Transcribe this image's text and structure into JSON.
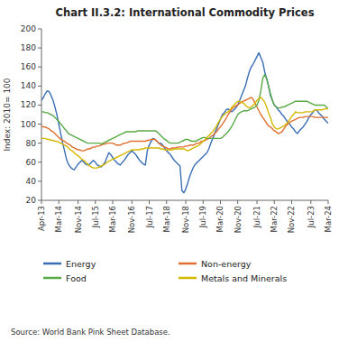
{
  "chart_data": {
    "type": "line",
    "title": "Chart II.3.2: International Commodity Prices",
    "y_label": "Index: 2010= 100",
    "source": "Source: World Bank Pink Sheet Database.",
    "ylim": [
      20,
      200
    ],
    "yticks": [
      20,
      40,
      60,
      80,
      100,
      120,
      140,
      160,
      180,
      200
    ],
    "grid": false,
    "legend": "bottom",
    "categories": [
      "Apr-13",
      null,
      null,
      null,
      null,
      null,
      null,
      null,
      null,
      "Mar-14",
      null,
      null,
      null,
      null,
      null,
      null,
      null,
      null,
      null,
      "Nov-14",
      null,
      null,
      null,
      null,
      null,
      null,
      null,
      null,
      "Jul-15",
      null,
      null,
      null,
      null,
      null,
      null,
      null,
      null,
      "Mar-16",
      null,
      null,
      null,
      null,
      null,
      null,
      null,
      null,
      null,
      "Nov-16",
      null,
      null,
      null,
      null,
      null,
      null,
      null,
      null,
      "Jul-17",
      null,
      null,
      null,
      null,
      null,
      null,
      null,
      null,
      "Mar-18",
      null,
      null,
      null,
      null,
      null,
      null,
      null,
      null,
      null,
      "Nov-18",
      null,
      null,
      null,
      null,
      null,
      null,
      null,
      null,
      "Jul-19",
      null,
      null,
      null,
      null,
      null,
      null,
      null,
      null,
      "Mar-20",
      null,
      null,
      null,
      null,
      null,
      null,
      null,
      null,
      "Nov-20",
      null,
      null,
      null,
      null,
      null,
      null,
      null,
      null,
      null,
      "Jul-21",
      null,
      null,
      null,
      null,
      null,
      null,
      null,
      null,
      "Mar-22",
      null,
      null,
      null,
      null,
      null,
      null,
      null,
      null,
      "Nov-22",
      null,
      null,
      null,
      null,
      null,
      null,
      null,
      null,
      null,
      "Jul-23",
      null,
      null,
      null,
      null,
      null,
      null,
      null,
      null,
      "Mar-24"
    ],
    "series": [
      {
        "name": "Energy",
        "color": "#3a6eb5",
        "values": [
          125,
          128,
          132,
          135,
          134,
          130,
          125,
          118,
          110,
          100,
          90,
          80,
          72,
          63,
          58,
          55,
          53,
          52,
          55,
          58,
          60,
          62,
          60,
          58,
          57,
          58,
          60,
          62,
          60,
          57,
          56,
          55,
          57,
          60,
          65,
          70,
          68,
          65,
          62,
          60,
          58,
          57,
          60,
          62,
          65,
          68,
          70,
          72,
          70,
          68,
          65,
          62,
          60,
          58,
          57,
          72,
          78,
          82,
          85,
          84,
          82,
          80,
          80,
          78,
          75,
          72,
          70,
          68,
          65,
          62,
          60,
          58,
          56,
          30,
          28,
          32,
          38,
          45,
          50,
          55,
          58,
          60,
          62,
          64,
          66,
          68,
          70,
          74,
          80,
          85,
          90,
          95,
          100,
          105,
          110,
          112,
          115,
          116,
          114,
          113,
          115,
          117,
          120,
          125,
          130,
          135,
          140,
          148,
          155,
          160,
          163,
          167,
          171,
          175,
          170,
          165,
          155,
          148,
          140,
          130,
          125,
          120,
          118,
          115,
          113,
          110,
          108,
          105,
          102,
          100,
          97,
          95,
          92,
          90,
          93,
          95,
          97,
          100,
          103,
          107,
          110,
          112,
          115,
          115,
          112,
          110,
          108,
          105,
          103,
          101
        ]
      },
      {
        "name": "Non-energy",
        "color": "#e07030",
        "values": [
          98,
          97,
          97,
          96,
          95,
          93,
          92,
          90,
          88,
          86,
          84,
          83,
          82,
          80,
          79,
          78,
          76,
          75,
          74,
          73,
          73,
          72,
          72,
          73,
          74,
          74,
          75,
          76,
          76,
          77,
          77,
          78,
          79,
          79,
          80,
          80,
          80,
          80,
          79,
          78,
          78,
          78,
          79,
          80,
          80,
          81,
          82,
          82,
          82,
          82,
          82,
          82,
          82,
          82,
          82,
          83,
          83,
          84,
          84,
          84,
          82,
          80,
          78,
          77,
          76,
          75,
          74,
          74,
          75,
          75,
          75,
          76,
          76,
          76,
          76,
          77,
          77,
          78,
          78,
          78,
          79,
          80,
          80,
          82,
          82,
          83,
          84,
          85,
          87,
          88,
          90,
          92,
          95,
          97,
          100,
          103,
          106,
          110,
          113,
          116,
          118,
          119,
          120,
          122,
          123,
          124,
          125,
          126,
          127,
          128,
          126,
          122,
          118,
          114,
          110,
          107,
          104,
          101,
          98,
          97,
          95,
          93,
          92,
          90,
          91,
          92,
          95,
          98,
          100,
          102,
          103,
          104,
          105,
          106,
          107,
          107,
          107,
          108,
          108,
          108,
          108,
          108,
          107,
          107,
          107,
          107,
          107,
          107,
          107,
          107
        ]
      },
      {
        "name": "Food",
        "color": "#5aaa46",
        "values": [
          113,
          113,
          112,
          112,
          111,
          110,
          109,
          107,
          105,
          103,
          100,
          98,
          95,
          93,
          90,
          89,
          88,
          87,
          86,
          85,
          84,
          83,
          82,
          81,
          80,
          80,
          80,
          80,
          80,
          80,
          80,
          79,
          80,
          81,
          82,
          83,
          84,
          85,
          86,
          87,
          88,
          89,
          90,
          91,
          92,
          92,
          92,
          92,
          92,
          92,
          93,
          93,
          93,
          93,
          93,
          93,
          93,
          93,
          93,
          93,
          92,
          90,
          88,
          86,
          84,
          83,
          81,
          80,
          80,
          80,
          80,
          80,
          81,
          82,
          83,
          84,
          84,
          83,
          82,
          82,
          82,
          83,
          84,
          85,
          86,
          86,
          85,
          85,
          85,
          85,
          85,
          85,
          85,
          85,
          86,
          88,
          90,
          92,
          95,
          98,
          102,
          106,
          110,
          112,
          113,
          114,
          114,
          114,
          115,
          116,
          117,
          118,
          120,
          125,
          135,
          148,
          152,
          148,
          140,
          132,
          125,
          120,
          118,
          117,
          117,
          118,
          118,
          119,
          120,
          121,
          122,
          123,
          124,
          124,
          124,
          124,
          124,
          124,
          124,
          123,
          122,
          121,
          120,
          120,
          120,
          120,
          120,
          120,
          118,
          116
        ]
      },
      {
        "name": "Metals and Minerals",
        "color": "#d4b800",
        "values": [
          85,
          85,
          85,
          84,
          84,
          83,
          83,
          82,
          82,
          81,
          80,
          79,
          78,
          77,
          75,
          73,
          72,
          70,
          68,
          67,
          65,
          63,
          62,
          60,
          58,
          56,
          55,
          54,
          54,
          54,
          55,
          56,
          57,
          58,
          60,
          61,
          62,
          63,
          64,
          65,
          66,
          67,
          68,
          69,
          70,
          71,
          72,
          73,
          73,
          73,
          73,
          73,
          74,
          74,
          75,
          75,
          75,
          75,
          75,
          75,
          75,
          75,
          74,
          74,
          73,
          73,
          73,
          73,
          73,
          74,
          74,
          74,
          74,
          74,
          74,
          73,
          72,
          73,
          74,
          75,
          76,
          77,
          78,
          80,
          82,
          84,
          86,
          88,
          90,
          92,
          95,
          98,
          102,
          105,
          108,
          110,
          112,
          113,
          115,
          118,
          120,
          122,
          124,
          124,
          123,
          122,
          120,
          118,
          117,
          118,
          120,
          122,
          125,
          127,
          128,
          126,
          123,
          118,
          112,
          107,
          100,
          97,
          95,
          95,
          96,
          97,
          98,
          100,
          102,
          105,
          108,
          110,
          113,
          112,
          112,
          112,
          112,
          113,
          113,
          113,
          113,
          113,
          115,
          115,
          115,
          115,
          115,
          116,
          116,
          116
        ]
      }
    ]
  }
}
